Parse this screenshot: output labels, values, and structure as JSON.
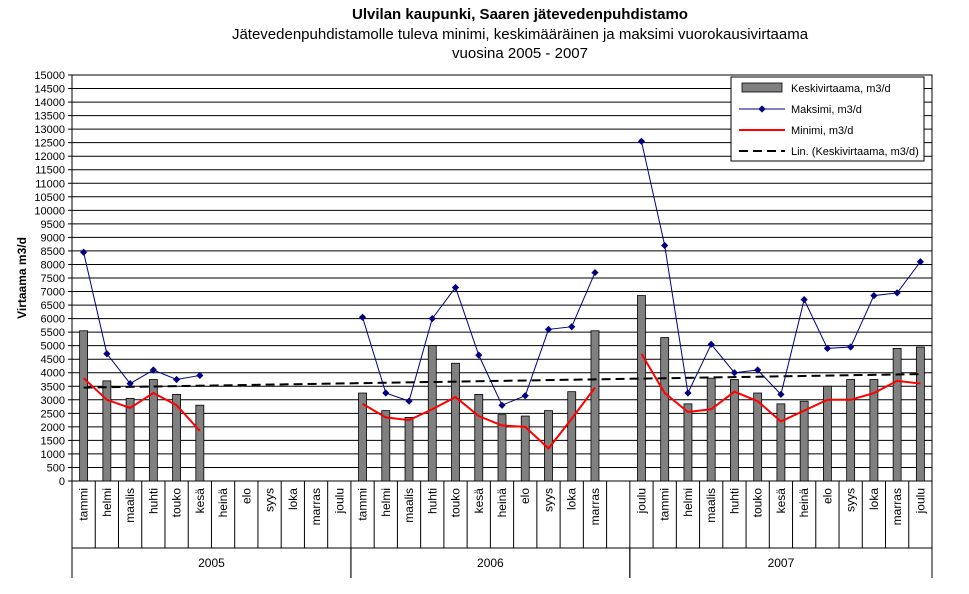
{
  "chart_data": {
    "type": "bar",
    "title": "Ulvilan kaupunki, Saaren jätevedenpuhdistamo",
    "subtitle": "Jätevedenpuhdistamolle tuleva minimi, keskimääräinen ja maksimi vuorokausivirtaama",
    "subtitle2": "vuosina 2005 - 2007",
    "ylabel": "Virtaama m3/d",
    "ylim": [
      0,
      15000
    ],
    "ytick_step": 500,
    "grid": true,
    "legend_position": "top-right",
    "years": [
      {
        "label": "2005",
        "months": 12
      },
      {
        "label": "2006",
        "months": 12
      },
      {
        "label": "2007",
        "months": 13
      }
    ],
    "categories": [
      "tammi",
      "helmi",
      "maalis",
      "huhti",
      "touko",
      "kesä",
      "heinä",
      "elo",
      "syys",
      "loka",
      "marras",
      "joulu",
      "tammi",
      "helmi",
      "maalis",
      "huhti",
      "touko",
      "kesä",
      "heinä",
      "elo",
      "syys",
      "loka",
      "marras",
      "",
      "joulu",
      "tammi",
      "helmi",
      "maalis",
      "huhti",
      "touko",
      "kesä",
      "heinä",
      "elo",
      "syys",
      "loka",
      "marras",
      "joulu"
    ],
    "series": [
      {
        "name": "Keskivirtaama, m3/d",
        "kind": "bar",
        "color": "#808080",
        "values": [
          5550,
          3700,
          3050,
          3750,
          3200,
          2800,
          null,
          null,
          null,
          null,
          null,
          null,
          3250,
          2600,
          2350,
          5000,
          4350,
          3200,
          2450,
          2400,
          2600,
          3300,
          5550,
          null,
          6850,
          5300,
          2850,
          3800,
          3750,
          3250,
          2850,
          2950,
          3500,
          3750,
          3750,
          4900,
          4950
        ]
      },
      {
        "name": "Maksimi, m3/d",
        "kind": "line-marker",
        "color": "#000080",
        "values": [
          8450,
          4700,
          3600,
          4100,
          3750,
          3900,
          null,
          null,
          null,
          null,
          null,
          null,
          6050,
          3250,
          2950,
          6000,
          7150,
          4650,
          2800,
          3150,
          5600,
          5700,
          7700,
          null,
          12550,
          8700,
          3250,
          5050,
          4000,
          4100,
          3200,
          6700,
          4900,
          4950,
          6850,
          6950,
          8100
        ]
      },
      {
        "name": "Minimi, m3/d",
        "kind": "line",
        "color": "#ff0000",
        "values": [
          3800,
          3000,
          2700,
          3250,
          2800,
          1850,
          null,
          null,
          null,
          null,
          null,
          null,
          2850,
          2350,
          2250,
          2650,
          3100,
          2400,
          2050,
          2000,
          1200,
          2300,
          3450,
          null,
          4700,
          3250,
          2550,
          2650,
          3300,
          2950,
          2200,
          2600,
          3000,
          3000,
          3250,
          3700,
          3600
        ]
      },
      {
        "name": "Lin. (Keskivirtaama, m3/d)",
        "kind": "trend",
        "color": "#000000",
        "start": 3450,
        "end": 3950
      }
    ]
  }
}
